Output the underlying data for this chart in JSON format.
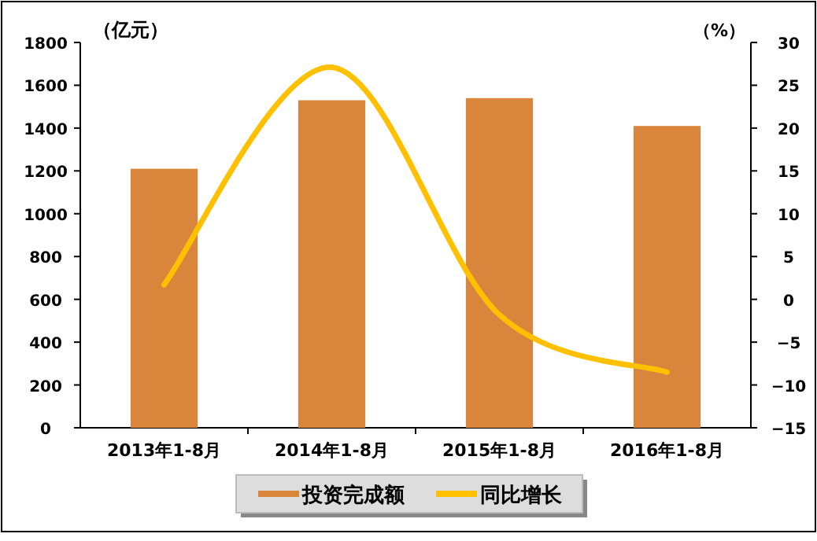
{
  "chart_data": {
    "type": "bar",
    "ylabel": "（亿元）",
    "y2label": "（%）",
    "categories": [
      "2013年1-8月",
      "2014年1-8月",
      "2015年1-8月",
      "2016年1-8月"
    ],
    "series": [
      {
        "name": "投资完成额",
        "color": "#d9853b",
        "values": [
          1210,
          1530,
          1540,
          1410
        ]
      },
      {
        "name": "同比增长",
        "type": "line",
        "axis": "y2",
        "color": "#ffc000",
        "values": [
          1.7,
          27.1,
          -1.8,
          -8.5
        ]
      }
    ],
    "ylim": [
      0,
      1800
    ],
    "yticks": [
      0,
      200,
      400,
      600,
      800,
      1000,
      1200,
      1400,
      1600,
      1800
    ],
    "y2lim": [
      -15,
      30
    ],
    "y2ticks": [
      -15,
      -10,
      -5,
      0,
      5,
      10,
      15,
      20,
      25,
      30
    ],
    "legend": "bottom",
    "grid": false,
    "line_style": "solid"
  }
}
